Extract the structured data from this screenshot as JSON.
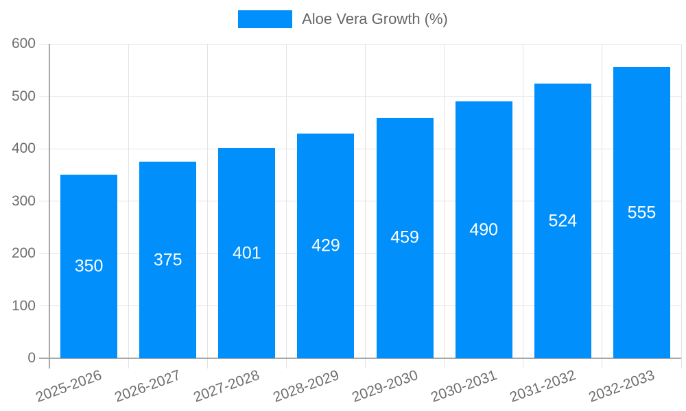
{
  "chart_data": {
    "type": "bar",
    "title": "",
    "xlabel": "",
    "ylabel": "",
    "legend": {
      "position": "top",
      "label": "Aloe Vera Growth (%)"
    },
    "categories": [
      "2025-2026",
      "2026-2027",
      "2027-2028",
      "2028-2029",
      "2029-2030",
      "2030-2031",
      "2031-2032",
      "2032-2033"
    ],
    "series": [
      {
        "name": "Aloe Vera Growth (%)",
        "values": [
          350,
          375,
          401,
          429,
          459,
          490,
          524,
          555
        ]
      }
    ],
    "data_labels": [
      "350",
      "375",
      "401",
      "429",
      "459",
      "490",
      "524",
      "555"
    ],
    "ylim": [
      0,
      600
    ],
    "y_ticks": [
      0,
      100,
      200,
      300,
      400,
      500,
      600
    ],
    "grid": true,
    "colors": {
      "bar": "#008FFB",
      "data_label": "#ffffff",
      "legend_text": "#666666",
      "axis_tick_text": "#6e6e6e",
      "gridline": "#e3e3e3",
      "axis_line": "#a8a8a8"
    }
  }
}
